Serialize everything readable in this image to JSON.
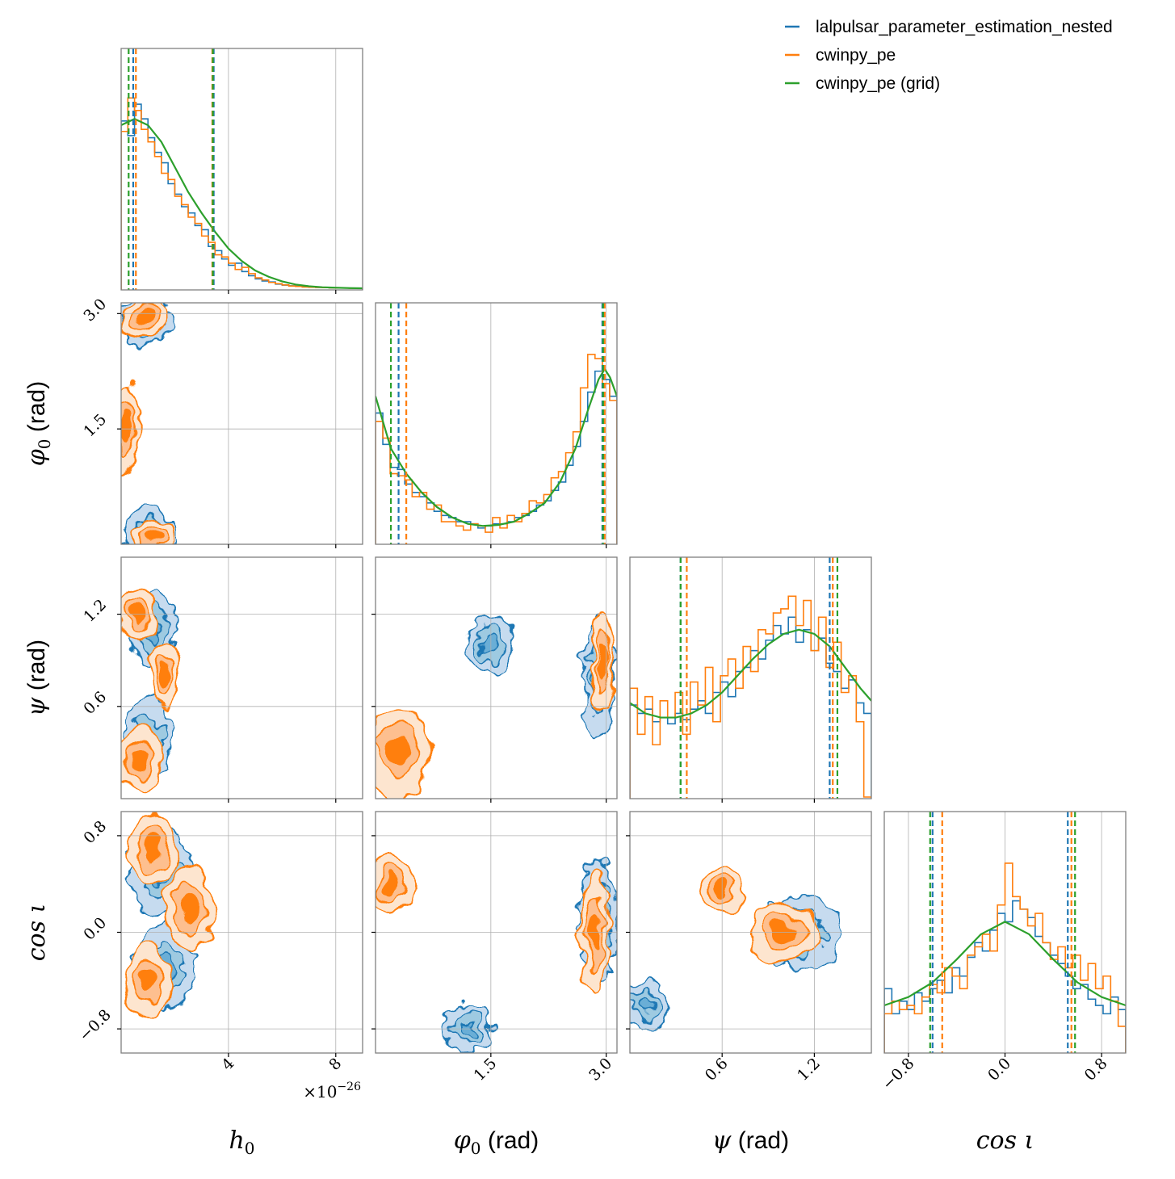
{
  "chart_data": {
    "type": "corner",
    "colors": {
      "lalpulsar": "#1f77b4",
      "cwinpy": "#ff7f0e",
      "grid": "#2ca02c",
      "grid_lines": "#b0b0b0",
      "frame": "#808080",
      "orange_fill_levels": [
        "#fde5cf",
        "#fdbf8f",
        "#ff7f0e"
      ],
      "blue_fill_levels": [
        "#c6dbef",
        "#9ecae1",
        "#6baed6"
      ]
    },
    "legend": {
      "placement": "top-right",
      "entries": [
        {
          "label": "lalpulsar_parameter_estimation_nested",
          "color": "#1f77b4",
          "style": "solid"
        },
        {
          "label": "cwinpy_pe",
          "color": "#ff7f0e",
          "style": "solid"
        },
        {
          "label": "cwinpy_pe (grid)",
          "color": "#2ca02c",
          "style": "solid"
        }
      ]
    },
    "parameters": [
      {
        "key": "h0",
        "label": "h",
        "sub": "0",
        "unit": "",
        "offset_text": "×10",
        "offset_exp": "−26",
        "range": [
          0.0,
          9.0
        ],
        "ticks": [
          4,
          8
        ],
        "tick_labels": [
          "4",
          "8"
        ],
        "row_ticks": [],
        "row_tick_labels": []
      },
      {
        "key": "phi0",
        "label": "φ",
        "sub": "0",
        "unit": " (rad)",
        "offset_text": "",
        "offset_exp": "",
        "range": [
          0.0,
          3.14
        ],
        "ticks": [
          1.5,
          3.0
        ],
        "tick_labels": [
          "1.5",
          "3.0"
        ],
        "row_ticks": [
          1.5,
          3.0
        ],
        "row_tick_labels": [
          "1.5",
          "3.0"
        ]
      },
      {
        "key": "psi",
        "label": "ψ",
        "sub": "",
        "unit": " (rad)",
        "offset_text": "",
        "offset_exp": "",
        "range": [
          0.0,
          1.571
        ],
        "ticks": [
          0.6,
          1.2
        ],
        "tick_labels": [
          "0.6",
          "1.2"
        ],
        "row_ticks": [
          0.6,
          1.2
        ],
        "row_tick_labels": [
          "0.6",
          "1.2"
        ]
      },
      {
        "key": "cosi",
        "label": "cos ι",
        "sub": "",
        "unit": "",
        "offset_text": "",
        "offset_exp": "",
        "range": [
          -1.0,
          1.0
        ],
        "ticks": [
          -0.8,
          0.0,
          0.8
        ],
        "tick_labels": [
          "−0.8",
          "0.0",
          "0.8"
        ],
        "row_ticks": [
          -0.8,
          0.0,
          0.8
        ],
        "row_tick_labels": [
          "−0.8",
          "0.0",
          "0.8"
        ]
      }
    ],
    "marginals": {
      "h0": {
        "grid_curve": {
          "x": [
            0,
            0.5,
            1.0,
            1.5,
            2.0,
            2.5,
            3.0,
            3.5,
            4.0,
            4.5,
            5.0,
            5.5,
            6.0,
            6.5,
            7.0,
            7.5,
            8.0,
            8.5,
            9.0
          ],
          "y": [
            0.78,
            0.81,
            0.78,
            0.7,
            0.58,
            0.46,
            0.36,
            0.27,
            0.19,
            0.13,
            0.085,
            0.055,
            0.033,
            0.018,
            0.01,
            0.005,
            0.003,
            0.001,
            0.0
          ]
        },
        "lalpulsar_hist": [
          0.8,
          0.73,
          0.88,
          0.81,
          0.72,
          0.65,
          0.6,
          0.5,
          0.45,
          0.39,
          0.36,
          0.3,
          0.28,
          0.2,
          0.18,
          0.14,
          0.11,
          0.12,
          0.08,
          0.06,
          0.045,
          0.035,
          0.03,
          0.02,
          0.015,
          0.012,
          0.01,
          0.007,
          0.005,
          0.004,
          0.003,
          0.002,
          0.002,
          0.001,
          0.001,
          0.0
        ],
        "cwinpy_hist": [
          0.75,
          0.91,
          0.85,
          0.76,
          0.7,
          0.63,
          0.55,
          0.52,
          0.44,
          0.4,
          0.34,
          0.31,
          0.25,
          0.22,
          0.16,
          0.15,
          0.12,
          0.09,
          0.1,
          0.07,
          0.05,
          0.04,
          0.028,
          0.022,
          0.016,
          0.011,
          0.009,
          0.006,
          0.005,
          0.004,
          0.003,
          0.002,
          0.001,
          0.001,
          0.0,
          0.0
        ],
        "intervals": {
          "lalpulsar": [
            0.45,
            3.45
          ],
          "cwinpy": [
            0.55,
            3.4
          ],
          "grid": [
            0.28,
            3.42
          ]
        }
      },
      "phi0": {
        "grid_curve": {
          "x": [
            0.0,
            0.2,
            0.4,
            0.6,
            0.8,
            1.0,
            1.2,
            1.4,
            1.6,
            1.8,
            2.0,
            2.2,
            2.4,
            2.6,
            2.75,
            2.9,
            2.98,
            3.05,
            3.14
          ],
          "y": [
            0.7,
            0.45,
            0.33,
            0.24,
            0.17,
            0.12,
            0.09,
            0.08,
            0.085,
            0.1,
            0.14,
            0.19,
            0.29,
            0.45,
            0.62,
            0.78,
            0.83,
            0.79,
            0.7
          ]
        },
        "lalpulsar_hist": [
          0.62,
          0.47,
          0.36,
          0.35,
          0.28,
          0.24,
          0.22,
          0.19,
          0.15,
          0.13,
          0.12,
          0.1,
          0.1,
          0.09,
          0.07,
          0.08,
          0.09,
          0.09,
          0.1,
          0.12,
          0.13,
          0.15,
          0.18,
          0.2,
          0.25,
          0.29,
          0.37,
          0.46,
          0.58,
          0.72,
          0.82,
          0.78,
          0.7
        ],
        "cwinpy_hist": [
          0.58,
          0.5,
          0.33,
          0.32,
          0.3,
          0.22,
          0.24,
          0.16,
          0.18,
          0.1,
          0.1,
          0.08,
          0.06,
          0.09,
          0.08,
          0.05,
          0.12,
          0.07,
          0.13,
          0.1,
          0.14,
          0.2,
          0.19,
          0.23,
          0.31,
          0.34,
          0.43,
          0.53,
          0.74,
          0.9,
          0.88,
          0.76,
          0.68
        ],
        "intervals": {
          "lalpulsar": [
            0.3,
            2.95
          ],
          "cwinpy": [
            0.4,
            2.98
          ],
          "grid": [
            0.2,
            2.96
          ]
        }
      },
      "psi": {
        "grid_curve": {
          "x": [
            0.0,
            0.1,
            0.2,
            0.3,
            0.4,
            0.5,
            0.6,
            0.7,
            0.8,
            0.9,
            1.0,
            1.1,
            1.2,
            1.3,
            1.4,
            1.5,
            1.571
          ],
          "y": [
            0.45,
            0.4,
            0.38,
            0.38,
            0.4,
            0.44,
            0.5,
            0.58,
            0.66,
            0.73,
            0.78,
            0.8,
            0.78,
            0.72,
            0.62,
            0.52,
            0.46
          ]
        },
        "lalpulsar_hist": [
          0.44,
          0.4,
          0.42,
          0.36,
          0.38,
          0.35,
          0.4,
          0.37,
          0.42,
          0.46,
          0.4,
          0.5,
          0.55,
          0.48,
          0.6,
          0.62,
          0.7,
          0.66,
          0.75,
          0.82,
          0.78,
          0.86,
          0.74,
          0.8,
          0.7,
          0.76,
          0.64,
          0.6,
          0.52,
          0.56,
          0.45,
          0.4
        ],
        "cwinpy_hist": [
          0.52,
          0.3,
          0.48,
          0.25,
          0.46,
          0.38,
          0.5,
          0.3,
          0.55,
          0.44,
          0.62,
          0.36,
          0.58,
          0.66,
          0.52,
          0.72,
          0.6,
          0.8,
          0.78,
          0.88,
          0.9,
          0.96,
          0.82,
          0.94,
          0.7,
          0.86,
          0.62,
          0.74,
          0.5,
          0.58,
          0.36,
          0.0
        ],
        "intervals": {
          "lalpulsar": [
            0.33,
            1.3
          ],
          "cwinpy": [
            0.37,
            1.32
          ],
          "grid": [
            0.33,
            1.35
          ]
        }
      },
      "cosi": {
        "grid_curve": {
          "x": [
            -1.0,
            -0.8,
            -0.6,
            -0.4,
            -0.2,
            0.0,
            0.2,
            0.4,
            0.6,
            0.8,
            1.0
          ],
          "y": [
            0.22,
            0.26,
            0.33,
            0.44,
            0.56,
            0.62,
            0.56,
            0.44,
            0.33,
            0.26,
            0.22
          ]
        },
        "lalpulsar_hist": [
          0.3,
          0.18,
          0.24,
          0.2,
          0.28,
          0.24,
          0.3,
          0.34,
          0.28,
          0.4,
          0.36,
          0.45,
          0.52,
          0.48,
          0.58,
          0.66,
          0.62,
          0.72,
          0.68,
          0.64,
          0.55,
          0.52,
          0.46,
          0.42,
          0.36,
          0.3,
          0.32,
          0.25,
          0.22,
          0.18,
          0.26,
          0.2
        ],
        "cwinpy_hist": [
          0.18,
          0.24,
          0.2,
          0.22,
          0.18,
          0.26,
          0.32,
          0.28,
          0.4,
          0.36,
          0.3,
          0.46,
          0.5,
          0.56,
          0.48,
          0.7,
          0.9,
          0.74,
          0.68,
          0.6,
          0.66,
          0.52,
          0.44,
          0.5,
          0.4,
          0.46,
          0.34,
          0.42,
          0.3,
          0.36,
          0.24,
          0.12
        ],
        "intervals": {
          "lalpulsar": [
            -0.6,
            0.52
          ],
          "cwinpy": [
            -0.52,
            0.55
          ],
          "grid": [
            -0.62,
            0.58
          ]
        }
      }
    },
    "pair_modes": {
      "h0|phi0": {
        "cwinpy": [
          [
            0.8,
            2.95,
            0.9,
            0.25
          ],
          [
            1.2,
            0.1,
            0.8,
            0.25
          ],
          [
            0.2,
            1.5,
            0.5,
            0.6
          ]
        ],
        "lalpulsar": [
          [
            0.9,
            2.9,
            1.0,
            0.3
          ],
          [
            1.0,
            0.15,
            0.9,
            0.3
          ]
        ]
      },
      "h0|psi": {
        "cwinpy": [
          [
            0.6,
            1.2,
            0.7,
            0.18
          ],
          [
            0.7,
            0.25,
            0.8,
            0.2
          ],
          [
            1.6,
            0.8,
            0.5,
            0.2
          ]
        ],
        "lalpulsar": [
          [
            1.2,
            1.1,
            0.9,
            0.25
          ],
          [
            1.0,
            0.4,
            0.9,
            0.25
          ]
        ]
      },
      "h0|cosi": {
        "cwinpy": [
          [
            1.2,
            0.7,
            0.9,
            0.3
          ],
          [
            2.5,
            0.2,
            0.9,
            0.35
          ],
          [
            1.0,
            -0.4,
            0.9,
            0.3
          ]
        ],
        "lalpulsar": [
          [
            1.5,
            0.5,
            1.2,
            0.35
          ],
          [
            1.6,
            -0.3,
            1.1,
            0.35
          ]
        ]
      },
      "phi0|psi": {
        "cwinpy": [
          [
            2.95,
            0.9,
            0.15,
            0.35
          ],
          [
            0.3,
            0.3,
            0.4,
            0.3
          ]
        ],
        "lalpulsar": [
          [
            2.9,
            0.8,
            0.2,
            0.4
          ],
          [
            1.5,
            1.0,
            0.3,
            0.2
          ]
        ]
      },
      "phi0|cosi": {
        "cwinpy": [
          [
            2.85,
            0.0,
            0.2,
            0.5
          ],
          [
            0.2,
            0.4,
            0.3,
            0.25
          ]
        ],
        "lalpulsar": [
          [
            2.9,
            0.1,
            0.25,
            0.5
          ],
          [
            1.2,
            -0.8,
            0.3,
            0.2
          ]
        ]
      },
      "psi|cosi": {
        "cwinpy": [
          [
            1.0,
            0.0,
            0.22,
            0.25
          ],
          [
            0.6,
            0.35,
            0.15,
            0.2
          ]
        ],
        "lalpulsar": [
          [
            1.1,
            0.0,
            0.28,
            0.3
          ],
          [
            0.1,
            -0.6,
            0.15,
            0.2
          ]
        ]
      }
    }
  }
}
